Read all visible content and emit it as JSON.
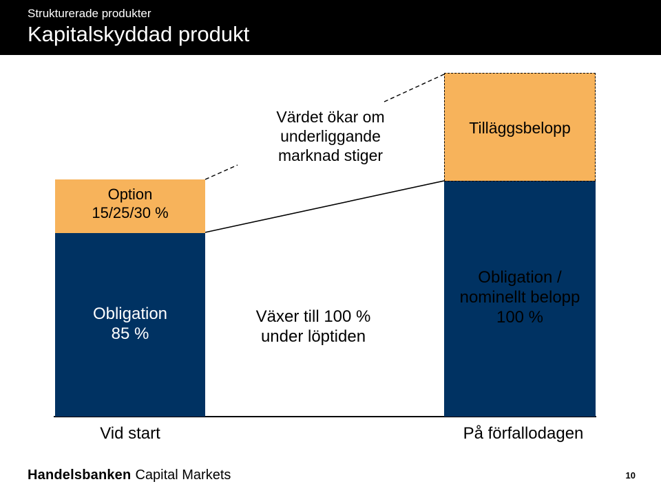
{
  "header": {
    "subtitle": "Strukturerade produkter",
    "title": "Kapitalskyddad produkt"
  },
  "start_column": {
    "option_label_line1": "Option",
    "option_label_line2": "15/25/30 %",
    "bond_label_line1": "Obligation",
    "bond_label_line2": "85 %",
    "axis_label": "Vid start"
  },
  "middle": {
    "growth_text_line1": "Växer till 100 %",
    "growth_text_line2": "under löptiden",
    "increase_text_line1": "Värdet ökar om",
    "increase_text_line2": "underliggande",
    "increase_text_line3": "marknad stiger"
  },
  "end_column": {
    "bonus_label": "Tilläggsbelopp",
    "bond_label_line1": "Obligation /",
    "bond_label_line2": "nominellt belopp",
    "bond_label_line3": "100 %",
    "axis_label": "På förfallodagen"
  },
  "footer": {
    "brand": "Handelsbanken",
    "brand_suffix": "Capital Markets",
    "page_number": "10"
  },
  "colors": {
    "navy": "#003262",
    "orange": "#f7b35b",
    "header_bg": "#000000"
  }
}
